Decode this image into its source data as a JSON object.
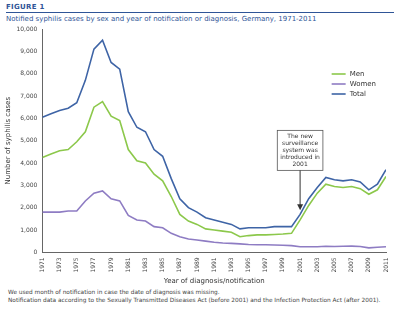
{
  "chart_data": {
    "type": "line",
    "figure_label": "FIGURE 1",
    "title": "Notified syphilis cases by sex and year of notification or diagnosis, Germany, 1971-2011",
    "x_label": "Year of diagnosis/notification",
    "y_label": "Number of syphilis cases",
    "x": [
      1971,
      1972,
      1973,
      1974,
      1975,
      1976,
      1977,
      1978,
      1979,
      1980,
      1981,
      1982,
      1983,
      1984,
      1985,
      1986,
      1987,
      1988,
      1989,
      1990,
      1991,
      1992,
      1993,
      1994,
      1995,
      1996,
      1997,
      1998,
      1999,
      2000,
      2001,
      2002,
      2003,
      2004,
      2005,
      2006,
      2007,
      2008,
      2009,
      2010,
      2011
    ],
    "series": [
      {
        "name": "Men",
        "color": "#8cc84b",
        "values": [
          4250,
          4400,
          4550,
          4600,
          4950,
          5400,
          6500,
          6750,
          6100,
          5900,
          4600,
          4100,
          4000,
          3500,
          3200,
          2500,
          1700,
          1400,
          1250,
          1050,
          1000,
          950,
          900,
          700,
          750,
          780,
          780,
          800,
          820,
          850,
          1450,
          2100,
          2650,
          3050,
          2950,
          2900,
          2950,
          2850,
          2600,
          2800,
          3400
        ]
      },
      {
        "name": "Women",
        "color": "#8e7cc3",
        "values": [
          1800,
          1800,
          1800,
          1850,
          1850,
          2300,
          2650,
          2750,
          2400,
          2300,
          1650,
          1450,
          1400,
          1150,
          1100,
          850,
          700,
          600,
          550,
          500,
          450,
          420,
          400,
          380,
          350,
          340,
          340,
          330,
          320,
          300,
          250,
          250,
          250,
          270,
          260,
          270,
          280,
          260,
          200,
          230,
          250
        ]
      },
      {
        "name": "Total",
        "color": "#3e64a6",
        "values": [
          6050,
          6200,
          6350,
          6450,
          6700,
          7700,
          9100,
          9500,
          8500,
          8200,
          6300,
          5600,
          5400,
          4600,
          4300,
          3300,
          2400,
          2000,
          1800,
          1550,
          1450,
          1350,
          1250,
          1050,
          1100,
          1100,
          1100,
          1150,
          1150,
          1150,
          1700,
          2400,
          2900,
          3350,
          3250,
          3200,
          3250,
          3150,
          2800,
          3050,
          3700
        ]
      }
    ],
    "xlim": [
      1971,
      2011
    ],
    "xticks": [
      1971,
      1973,
      1975,
      1977,
      1979,
      1981,
      1983,
      1985,
      1987,
      1989,
      1991,
      1993,
      1995,
      1997,
      1999,
      2001,
      2003,
      2005,
      2007,
      2009,
      2011
    ],
    "ylim": [
      0,
      10000
    ],
    "yticks": [
      0,
      {
        "value": 1000,
        "label": "1,000"
      },
      {
        "value": 2000,
        "label": "2,000"
      },
      {
        "value": 3000,
        "label": "3,000"
      },
      {
        "value": 4000,
        "label": "4,000"
      },
      {
        "value": 5000,
        "label": "5,000"
      },
      {
        "value": 6000,
        "label": "6,000"
      },
      {
        "value": 7000,
        "label": "7,000"
      },
      {
        "value": 8000,
        "label": "8,000"
      },
      {
        "value": 9000,
        "label": "9,000"
      },
      {
        "value": 10000,
        "label": "10,000"
      }
    ],
    "grid": false,
    "legend": "upper right",
    "annotations": [
      {
        "text": "The new surveillance system was introduced in 2001",
        "x": 2001
      }
    ],
    "notes": [
      "We used month of notification in case the date of diagnosis was missing.",
      "Notification data according to the Sexually Transmitted Diseases Act (before 2001) and the Infection Protection Act (after 2001)."
    ]
  }
}
